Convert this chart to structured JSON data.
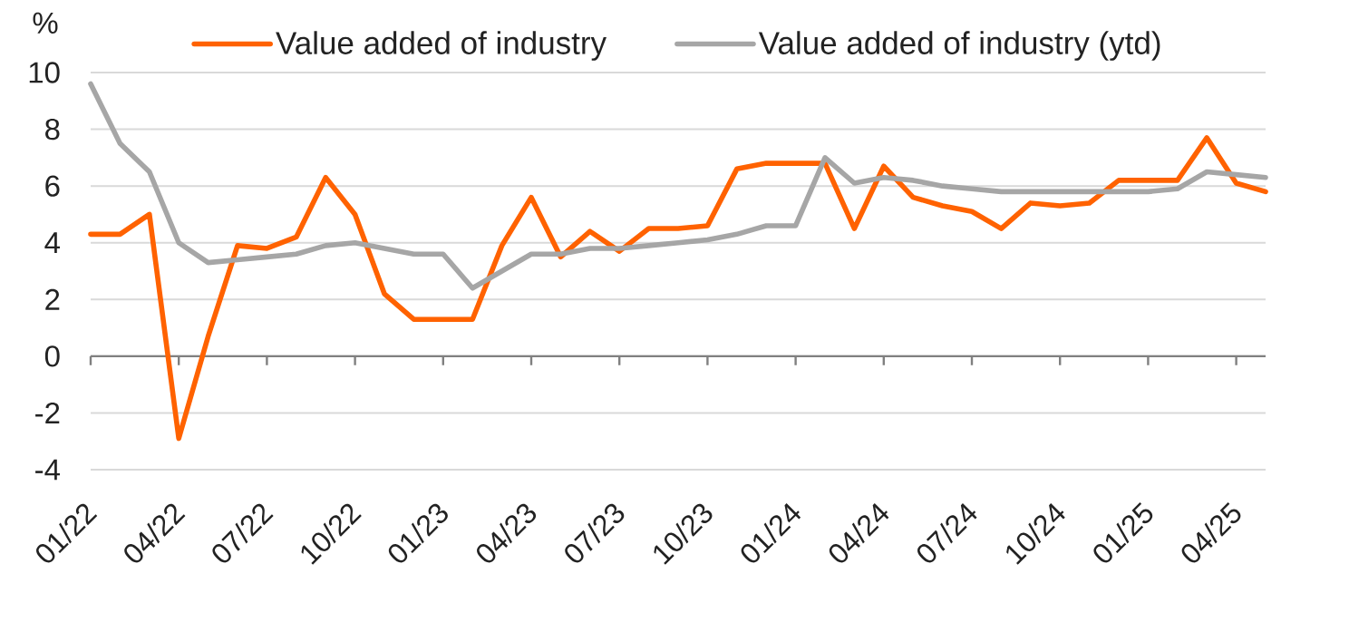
{
  "chart_data": {
    "type": "line",
    "ylabel": "%",
    "x": [
      "2022-01",
      "2022-02",
      "2022-03",
      "2022-04",
      "2022-05",
      "2022-06",
      "2022-07",
      "2022-08",
      "2022-09",
      "2022-10",
      "2022-11",
      "2022-12",
      "2023-01",
      "2023-02",
      "2023-03",
      "2023-04",
      "2023-05",
      "2023-06",
      "2023-07",
      "2023-08",
      "2023-09",
      "2023-10",
      "2023-11",
      "2023-12",
      "2024-01",
      "2024-02",
      "2024-03",
      "2024-04",
      "2024-05",
      "2024-06",
      "2024-07",
      "2024-08",
      "2024-09",
      "2024-10",
      "2024-11",
      "2024-12",
      "2025-01",
      "2025-02",
      "2025-03",
      "2025-04",
      "2025-05"
    ],
    "xlim": [
      "2022-01",
      "2025-05"
    ],
    "xticks": [
      {
        "value": "2022-01",
        "label": "01/22"
      },
      {
        "value": "2022-04",
        "label": "04/22"
      },
      {
        "value": "2022-07",
        "label": "07/22"
      },
      {
        "value": "2022-10",
        "label": "10/22"
      },
      {
        "value": "2023-01",
        "label": "01/23"
      },
      {
        "value": "2023-04",
        "label": "04/23"
      },
      {
        "value": "2023-07",
        "label": "07/23"
      },
      {
        "value": "2023-10",
        "label": "10/23"
      },
      {
        "value": "2024-01",
        "label": "01/24"
      },
      {
        "value": "2024-04",
        "label": "04/24"
      },
      {
        "value": "2024-07",
        "label": "07/24"
      },
      {
        "value": "2024-10",
        "label": "10/24"
      },
      {
        "value": "2025-01",
        "label": "01/25"
      },
      {
        "value": "2025-04",
        "label": "04/25"
      }
    ],
    "ylim": [
      -4,
      10
    ],
    "yticks": [
      -4,
      -2,
      0,
      2,
      4,
      6,
      8,
      10
    ],
    "grid": "y",
    "legend": "top",
    "marker": "none",
    "line_style": "solid",
    "series": [
      {
        "name": "Value added of industry",
        "color": "#ff6200",
        "values": [
          4.3,
          4.3,
          5.0,
          -2.9,
          0.7,
          3.9,
          3.8,
          4.2,
          6.3,
          5.0,
          2.2,
          1.3,
          1.3,
          1.3,
          3.9,
          5.6,
          3.5,
          4.4,
          3.7,
          4.5,
          4.5,
          4.6,
          6.6,
          6.8,
          6.8,
          6.8,
          4.5,
          6.7,
          5.6,
          5.3,
          5.1,
          4.5,
          5.4,
          5.3,
          5.4,
          6.2,
          6.2,
          6.2,
          7.7,
          6.1,
          5.8
        ]
      },
      {
        "name": "Value added of industry (ytd)",
        "color": "#a6a6a6",
        "values": [
          9.6,
          7.5,
          6.5,
          4.0,
          3.3,
          3.4,
          3.5,
          3.6,
          3.9,
          4.0,
          3.8,
          3.6,
          3.6,
          2.4,
          3.0,
          3.6,
          3.6,
          3.8,
          3.8,
          3.9,
          4.0,
          4.1,
          4.3,
          4.6,
          4.6,
          7.0,
          6.1,
          6.3,
          6.2,
          6.0,
          5.9,
          5.8,
          5.8,
          5.8,
          5.8,
          5.8,
          5.8,
          5.9,
          6.5,
          6.4,
          6.3
        ]
      }
    ]
  }
}
